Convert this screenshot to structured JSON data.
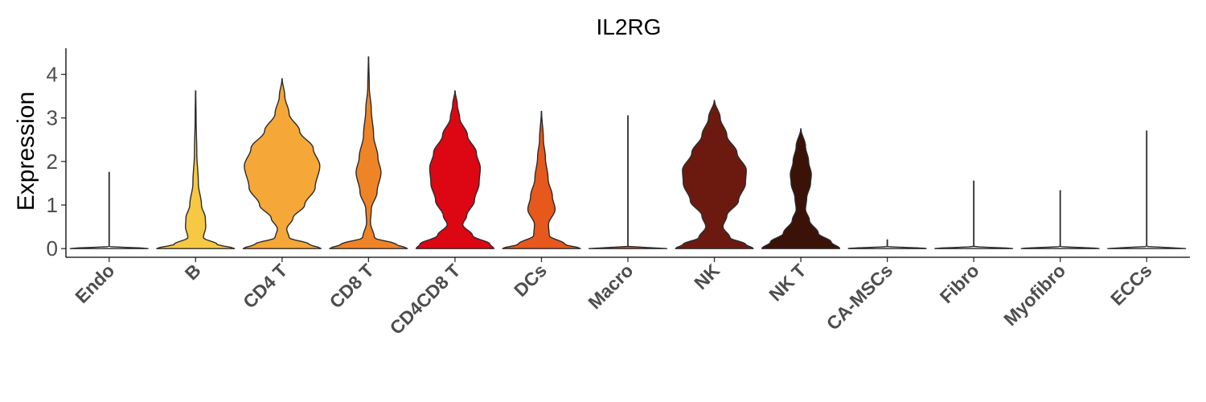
{
  "chart_data": {
    "type": "violin",
    "title": "IL2RG",
    "xlabel": "",
    "ylabel": "Expression",
    "ylim": [
      -0.2,
      4.6
    ],
    "yticks": [
      0,
      1,
      2,
      3,
      4
    ],
    "grid": false,
    "legend": "none",
    "categories": [
      "Endo",
      "B",
      "CD4 T",
      "CD8 T",
      "CD4CD8 T",
      "DCs",
      "Macro",
      "NK",
      "NK T",
      "CA-MSCs",
      "Fibro",
      "Myofibro",
      "ECCs"
    ],
    "series": [
      {
        "values": {
          "max": 1.75,
          "profile": [
            [
              0,
              1.0
            ],
            [
              0.05,
              0.004
            ],
            [
              1.75,
              0.004
            ]
          ]
        },
        "color": "#f2f2f2"
      },
      {
        "values": {
          "max": 3.62,
          "profile": [
            [
              0,
              1.0
            ],
            [
              0.1,
              0.55
            ],
            [
              0.25,
              0.2
            ],
            [
              0.5,
              0.26
            ],
            [
              0.7,
              0.25
            ],
            [
              1.0,
              0.15
            ],
            [
              1.5,
              0.07
            ],
            [
              2.2,
              0.03
            ],
            [
              3.0,
              0.012
            ],
            [
              3.62,
              0.004
            ]
          ]
        },
        "color": "#f6c843"
      },
      {
        "values": {
          "max": 3.9,
          "profile": [
            [
              0,
              1.0
            ],
            [
              0.1,
              0.7
            ],
            [
              0.25,
              0.18
            ],
            [
              0.45,
              0.12
            ],
            [
              0.7,
              0.28
            ],
            [
              1.0,
              0.58
            ],
            [
              1.4,
              0.85
            ],
            [
              1.9,
              0.97
            ],
            [
              2.3,
              0.8
            ],
            [
              2.7,
              0.45
            ],
            [
              3.1,
              0.18
            ],
            [
              3.5,
              0.07
            ],
            [
              3.9,
              0.004
            ]
          ]
        },
        "color": "#f5a737"
      },
      {
        "values": {
          "max": 4.4,
          "profile": [
            [
              0,
              1.0
            ],
            [
              0.1,
              0.7
            ],
            [
              0.25,
              0.15
            ],
            [
              0.6,
              0.05
            ],
            [
              0.9,
              0.07
            ],
            [
              1.3,
              0.22
            ],
            [
              1.75,
              0.32
            ],
            [
              2.1,
              0.24
            ],
            [
              2.6,
              0.13
            ],
            [
              3.2,
              0.07
            ],
            [
              3.7,
              0.02
            ],
            [
              4.4,
              0.004
            ]
          ]
        },
        "color": "#ef8427"
      },
      {
        "values": {
          "max": 3.62,
          "profile": [
            [
              0,
              1.0
            ],
            [
              0.1,
              0.9
            ],
            [
              0.3,
              0.45
            ],
            [
              0.55,
              0.2
            ],
            [
              0.75,
              0.3
            ],
            [
              1.1,
              0.5
            ],
            [
              1.5,
              0.62
            ],
            [
              1.85,
              0.65
            ],
            [
              2.2,
              0.55
            ],
            [
              2.6,
              0.32
            ],
            [
              3.0,
              0.12
            ],
            [
              3.3,
              0.06
            ],
            [
              3.62,
              0.004
            ]
          ]
        },
        "color": "#dc0712"
      },
      {
        "values": {
          "max": 3.15,
          "profile": [
            [
              0,
              1.0
            ],
            [
              0.1,
              0.6
            ],
            [
              0.3,
              0.2
            ],
            [
              0.55,
              0.18
            ],
            [
              0.9,
              0.35
            ],
            [
              1.2,
              0.28
            ],
            [
              1.6,
              0.17
            ],
            [
              2.1,
              0.1
            ],
            [
              2.5,
              0.05
            ],
            [
              3.15,
              0.004
            ]
          ]
        },
        "color": "#e6581b"
      },
      {
        "values": {
          "max": 3.05,
          "profile": [
            [
              0,
              1.0
            ],
            [
              0.05,
              0.004
            ],
            [
              3.05,
              0.004
            ]
          ]
        },
        "color": "#d85a18"
      },
      {
        "values": {
          "max": 3.4,
          "profile": [
            [
              0,
              1.0
            ],
            [
              0.1,
              0.8
            ],
            [
              0.25,
              0.4
            ],
            [
              0.5,
              0.22
            ],
            [
              0.75,
              0.32
            ],
            [
              1.1,
              0.62
            ],
            [
              1.5,
              0.8
            ],
            [
              1.8,
              0.82
            ],
            [
              2.2,
              0.58
            ],
            [
              2.6,
              0.32
            ],
            [
              3.0,
              0.15
            ],
            [
              3.4,
              0.004
            ]
          ]
        },
        "color": "#6c1a10"
      },
      {
        "values": {
          "max": 2.75,
          "profile": [
            [
              0,
              1.0
            ],
            [
              0.15,
              0.78
            ],
            [
              0.35,
              0.45
            ],
            [
              0.65,
              0.22
            ],
            [
              0.9,
              0.12
            ],
            [
              1.15,
              0.15
            ],
            [
              1.5,
              0.25
            ],
            [
              1.7,
              0.27
            ],
            [
              2.0,
              0.2
            ],
            [
              2.35,
              0.12
            ],
            [
              2.75,
              0.004
            ]
          ]
        },
        "color": "#3b1208"
      },
      {
        "values": {
          "max": 0.2,
          "profile": [
            [
              0,
              1.0
            ],
            [
              0.05,
              0.004
            ],
            [
              0.2,
              0.004
            ]
          ]
        },
        "color": "#f2f2f2"
      },
      {
        "values": {
          "max": 1.55,
          "profile": [
            [
              0,
              1.0
            ],
            [
              0.05,
              0.004
            ],
            [
              1.55,
              0.004
            ]
          ]
        },
        "color": "#f2f2f2"
      },
      {
        "values": {
          "max": 1.33,
          "profile": [
            [
              0,
              1.0
            ],
            [
              0.05,
              0.004
            ],
            [
              1.33,
              0.004
            ]
          ]
        },
        "color": "#f2f2f2"
      },
      {
        "values": {
          "max": 2.7,
          "profile": [
            [
              0,
              1.0
            ],
            [
              0.05,
              0.004
            ],
            [
              2.7,
              0.004
            ]
          ]
        },
        "color": "#f2f2f2"
      }
    ]
  }
}
